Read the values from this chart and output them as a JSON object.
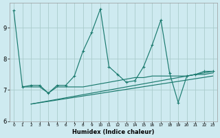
{
  "xlabel": "Humidex (Indice chaleur)",
  "bg_color": "#ceeaf0",
  "grid_color": "#aacccc",
  "line_color": "#1a7a6e",
  "xlim": [
    -0.5,
    23.5
  ],
  "ylim": [
    6.0,
    9.8
  ],
  "yticks": [
    6,
    7,
    8,
    9
  ],
  "xticks": [
    0,
    1,
    2,
    3,
    4,
    5,
    6,
    7,
    8,
    9,
    10,
    11,
    12,
    13,
    14,
    15,
    16,
    17,
    18,
    19,
    20,
    21,
    22,
    23
  ],
  "series1_x": [
    0,
    1,
    2,
    3,
    4,
    5,
    6,
    7,
    8,
    9,
    10,
    11,
    12,
    13,
    14,
    15,
    16,
    17,
    18,
    19,
    20,
    21,
    22,
    23
  ],
  "series1_y": [
    9.55,
    7.1,
    7.15,
    7.15,
    6.9,
    7.15,
    7.15,
    7.45,
    8.25,
    8.85,
    9.6,
    7.75,
    7.5,
    7.25,
    7.3,
    7.75,
    8.45,
    9.25,
    7.55,
    6.6,
    7.45,
    7.5,
    7.6,
    7.6
  ],
  "series2_x": [
    2,
    23
  ],
  "series2_y": [
    6.55,
    7.6
  ],
  "series3_x": [
    2,
    23
  ],
  "series3_y": [
    6.55,
    7.45
  ],
  "series4_x": [
    1,
    2,
    3,
    4,
    5,
    6,
    7,
    8,
    9,
    10,
    11,
    12,
    13,
    14,
    15,
    16,
    17,
    18,
    19,
    20,
    21,
    22,
    23
  ],
  "series4_y": [
    7.1,
    7.1,
    7.1,
    6.9,
    7.1,
    7.1,
    7.1,
    7.1,
    7.15,
    7.2,
    7.25,
    7.3,
    7.35,
    7.4,
    7.4,
    7.45,
    7.45,
    7.45,
    7.45,
    7.45,
    7.5,
    7.5,
    7.55
  ]
}
